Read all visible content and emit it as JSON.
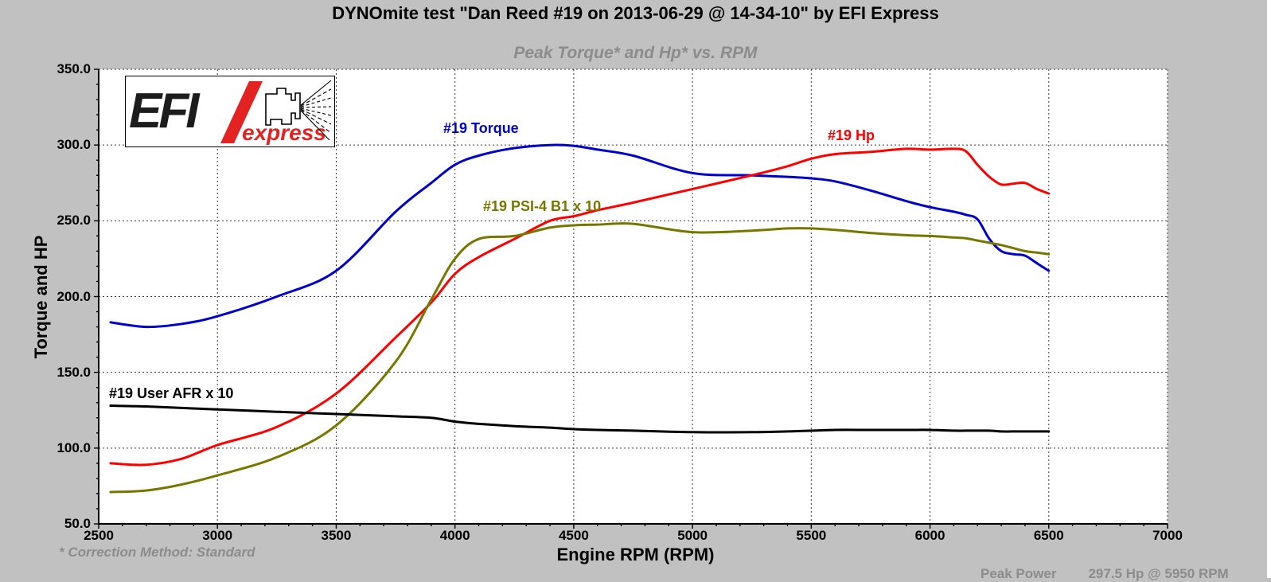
{
  "header": {
    "title": "DYNOmite test \"Dan Reed #19 on 2013-06-29 @ 14-34-10\" by EFI Express",
    "subtitle": "Peak Torque* and Hp* vs. RPM"
  },
  "logo": {
    "brand": "EFI",
    "brand_sub": "express"
  },
  "footer": {
    "correction_note": "* Correction Method: Standard",
    "peak_label": "Peak Power",
    "peak_value": "297.5 Hp @ 5950 RPM"
  },
  "colors": {
    "background": "#c1c1c1",
    "plot_background": "#ffffff",
    "grid": "#3a3a3a",
    "axis": "#000000",
    "subtitle_gray": "#8c8c8c",
    "footer_gray": "#8c8c8c",
    "logo_red": "#e32222",
    "logo_black": "#1c1c1c"
  },
  "chart_data": {
    "type": "line",
    "title": "Peak Torque* and Hp* vs. RPM",
    "xlabel": "Engine RPM (RPM)",
    "ylabel": "Torque and HP",
    "xlim": [
      2500,
      7000
    ],
    "ylim": [
      50,
      350
    ],
    "grid": true,
    "legend_position": "inline-labels",
    "xticks": [
      2500,
      3000,
      3500,
      4000,
      4500,
      5000,
      5500,
      6000,
      6500,
      7000
    ],
    "xtick_labels": [
      "2500",
      "3000",
      "3500",
      "4000",
      "4500",
      "5000",
      "5500",
      "6000",
      "6500",
      "7000"
    ],
    "yticks": [
      350,
      300,
      250,
      200,
      150,
      100,
      50
    ],
    "ytick_labels": [
      "350.0",
      "300.0",
      "250.0",
      "200.0",
      "150.0",
      "100.0",
      "50.0"
    ],
    "x": [
      2550,
      2700,
      2850,
      3000,
      3250,
      3500,
      3750,
      3900,
      4000,
      4100,
      4250,
      4400,
      4500,
      4600,
      4750,
      5000,
      5250,
      5400,
      5500,
      5600,
      5750,
      5900,
      6000,
      6100,
      6150,
      6200,
      6250,
      6300,
      6350,
      6400,
      6450,
      6500
    ],
    "series": [
      {
        "name": "#19 Torque",
        "color": "#0000cc",
        "values": [
          183,
          180,
          182,
          187,
          200,
          217,
          256,
          275,
          287,
          293,
          298,
          300,
          299.5,
          297,
          293,
          281.5,
          280,
          279,
          278,
          276,
          270,
          263,
          259,
          256,
          254,
          251,
          238,
          230,
          228,
          227,
          222,
          217
        ]
      },
      {
        "name": "#19 Hp",
        "color": "#ff0000",
        "values": [
          90,
          89,
          93,
          102,
          114,
          136,
          173,
          196,
          215,
          226,
          238,
          250,
          253,
          257,
          262,
          271,
          280,
          286,
          291,
          294,
          295.5,
          297.5,
          297,
          297.5,
          296,
          287,
          279,
          274,
          274.5,
          275,
          271,
          268
        ]
      },
      {
        "name": "#19 PSI-4 B1 x 10",
        "color": "#777700",
        "values": [
          71,
          72,
          76,
          82,
          94,
          115,
          157,
          198,
          225,
          238,
          240,
          245.5,
          247,
          247.5,
          248,
          242.5,
          243.5,
          245,
          245,
          244,
          242,
          240.5,
          240,
          239,
          238.5,
          237,
          235.5,
          234,
          232,
          230,
          229,
          228
        ]
      },
      {
        "name": "#19 User AFR x 10",
        "color": "#000000",
        "values": [
          128,
          127.5,
          126.5,
          125.5,
          124,
          122.5,
          121,
          120,
          117.5,
          116,
          114.5,
          113.5,
          112.5,
          112,
          111.5,
          110.5,
          110.5,
          111,
          111.5,
          112,
          112,
          112,
          112,
          111.5,
          111.5,
          111.5,
          111.5,
          111,
          111,
          111,
          111,
          111
        ]
      }
    ],
    "annotations": [
      "* Correction Method: Standard",
      "Peak Power 297.5 Hp @ 5950 RPM"
    ]
  }
}
